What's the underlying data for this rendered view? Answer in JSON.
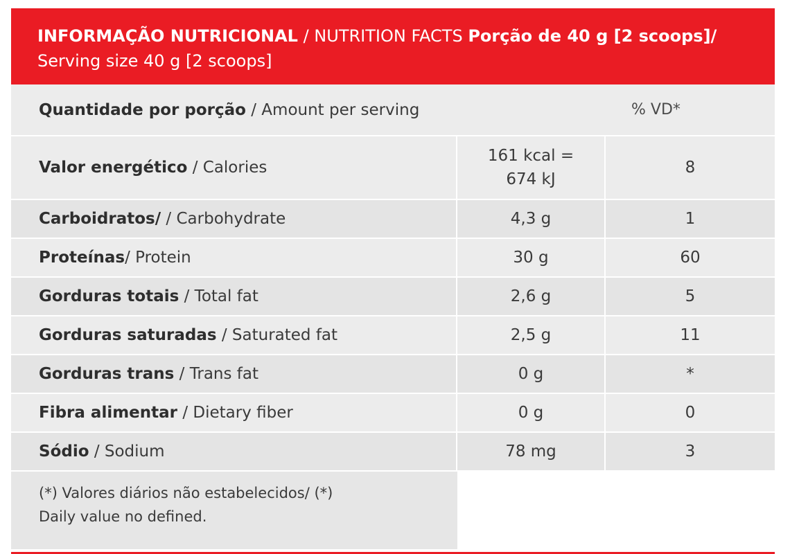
{
  "header": {
    "title_pt": "INFORMAÇÃO NUTRICIONAL",
    "title_en": " / NUTRITION FACTS ",
    "serving_pt": "Porção de 40 g [2 scoops]/",
    "serving_en": "Serving size 40 g [2 scoops]"
  },
  "subheader": {
    "amount_pt": "Quantidade por porção",
    "amount_en": " / Amount per serving",
    "dv_label": "% VD*"
  },
  "rows": [
    {
      "pt": "Valor energético",
      "en": " / Calories",
      "amount_line1": "161 kcal =",
      "amount_line2": "674 kJ",
      "dv": "8"
    },
    {
      "pt": "Carboidratos/",
      "en": " / Carbohydrate",
      "amount": "4,3 g",
      "dv": "1"
    },
    {
      "pt": "Proteínas",
      "en": "/ Protein",
      "amount": "30 g",
      "dv": "60"
    },
    {
      "pt": "Gorduras totais",
      "en": " / Total fat",
      "amount": "2,6 g",
      "dv": "5"
    },
    {
      "pt": "Gorduras saturadas",
      "en": " / Saturated fat",
      "amount": "2,5 g",
      "dv": "11"
    },
    {
      "pt": "Gorduras trans",
      "en": " / Trans fat",
      "amount": "0 g",
      "dv": "*"
    },
    {
      "pt": "Fibra alimentar",
      "en": " / Dietary fiber",
      "amount": "0 g",
      "dv": "0"
    },
    {
      "pt": "Sódio",
      "en": " / Sodium",
      "amount": "78 mg",
      "dv": "3"
    }
  ],
  "footnote": {
    "line1": "(*) Valores diários não estabelecidos/ (*)",
    "line2": "Daily value no defined."
  },
  "colors": {
    "header_red": "#ea1c24",
    "row_gray": "#ececec"
  }
}
